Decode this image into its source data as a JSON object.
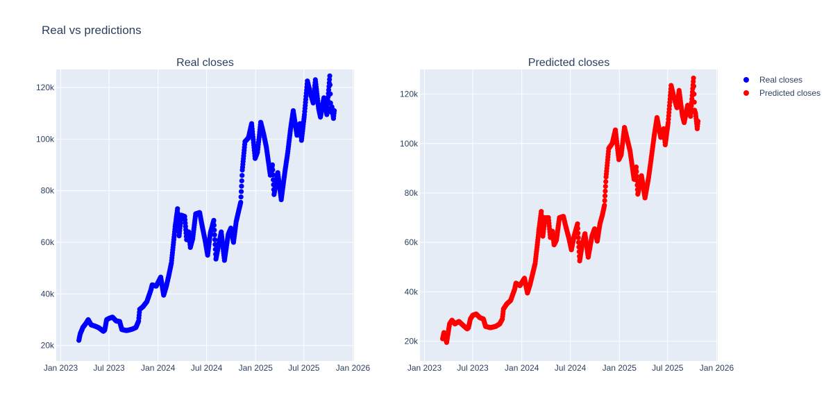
{
  "title": "Real vs predictions",
  "legend": [
    {
      "name": "Real closes",
      "color": "#0000ff"
    },
    {
      "name": "Predicted closes",
      "color": "#ff0000"
    }
  ],
  "colors": {
    "plot_bg": "#e5ecf6",
    "grid": "#ffffff",
    "text": "#2a3f5f"
  },
  "chart_data": [
    {
      "type": "scatter",
      "title": "Real closes",
      "xlabel": "",
      "ylabel": "",
      "x_ticks": [
        "Jan 2023",
        "Jul 2023",
        "Jan 2024",
        "Jul 2024",
        "Jan 2025",
        "Jul 2025",
        "Jan 2026"
      ],
      "y_ticks": [
        "20k",
        "40k",
        "60k",
        "80k",
        "100k",
        "120k"
      ],
      "xlim": [
        "2022-12-15",
        "2026-01-05"
      ],
      "ylim": [
        14000,
        127000
      ],
      "grid": true,
      "series": [
        {
          "name": "Real closes",
          "color": "#0000ff",
          "points": [
            [
              "2023-03-10",
              22000
            ],
            [
              "2023-03-15",
              24500
            ],
            [
              "2023-03-25",
              27000
            ],
            [
              "2023-04-05",
              28500
            ],
            [
              "2023-04-14",
              30000
            ],
            [
              "2023-04-25",
              28000
            ],
            [
              "2023-05-10",
              27500
            ],
            [
              "2023-05-25",
              26800
            ],
            [
              "2023-06-10",
              25500
            ],
            [
              "2023-06-15",
              26000
            ],
            [
              "2023-06-22",
              30000
            ],
            [
              "2023-07-01",
              30500
            ],
            [
              "2023-07-14",
              31000
            ],
            [
              "2023-07-28",
              29500
            ],
            [
              "2023-08-10",
              29300
            ],
            [
              "2023-08-18",
              26200
            ],
            [
              "2023-09-05",
              25800
            ],
            [
              "2023-09-25",
              26300
            ],
            [
              "2023-10-10",
              27000
            ],
            [
              "2023-10-20",
              29500
            ],
            [
              "2023-10-24",
              34000
            ],
            [
              "2023-11-05",
              35000
            ],
            [
              "2023-11-20",
              37000
            ],
            [
              "2023-12-05",
              41500
            ],
            [
              "2023-12-10",
              43500
            ],
            [
              "2023-12-25",
              43000
            ],
            [
              "2024-01-11",
              46500
            ],
            [
              "2024-01-22",
              39500
            ],
            [
              "2024-02-01",
              43000
            ],
            [
              "2024-02-10",
              47000
            ],
            [
              "2024-02-20",
              52000
            ],
            [
              "2024-02-28",
              60000
            ],
            [
              "2024-03-05",
              66000
            ],
            [
              "2024-03-14",
              73000
            ],
            [
              "2024-03-20",
              62500
            ],
            [
              "2024-03-28",
              70500
            ],
            [
              "2024-04-10",
              70000
            ],
            [
              "2024-04-17",
              61000
            ],
            [
              "2024-04-25",
              64000
            ],
            [
              "2024-05-01",
              58000
            ],
            [
              "2024-05-10",
              61500
            ],
            [
              "2024-05-21",
              71000
            ],
            [
              "2024-06-05",
              71500
            ],
            [
              "2024-06-15",
              66000
            ],
            [
              "2024-06-25",
              61000
            ],
            [
              "2024-07-05",
              55000
            ],
            [
              "2024-07-15",
              63500
            ],
            [
              "2024-07-28",
              68500
            ],
            [
              "2024-08-05",
              53500
            ],
            [
              "2024-08-15",
              59000
            ],
            [
              "2024-08-25",
              64000
            ],
            [
              "2024-09-06",
              53000
            ],
            [
              "2024-09-20",
              63000
            ],
            [
              "2024-09-30",
              65500
            ],
            [
              "2024-10-10",
              60000
            ],
            [
              "2024-10-20",
              68000
            ],
            [
              "2024-10-29",
              72000
            ],
            [
              "2024-11-06",
              75500
            ],
            [
              "2024-11-12",
              88000
            ],
            [
              "2024-11-22",
              99000
            ],
            [
              "2024-12-05",
              100500
            ],
            [
              "2024-12-17",
              106000
            ],
            [
              "2024-12-30",
              92500
            ],
            [
              "2025-01-08",
              95000
            ],
            [
              "2025-01-20",
              106500
            ],
            [
              "2025-01-31",
              102000
            ],
            [
              "2025-02-10",
              97000
            ],
            [
              "2025-02-25",
              86000
            ],
            [
              "2025-03-05",
              90000
            ],
            [
              "2025-03-11",
              78500
            ],
            [
              "2025-03-25",
              87000
            ],
            [
              "2025-04-07",
              76500
            ],
            [
              "2025-04-21",
              87500
            ],
            [
              "2025-05-01",
              94500
            ],
            [
              "2025-05-12",
              104000
            ],
            [
              "2025-05-22",
              111000
            ],
            [
              "2025-06-05",
              101500
            ],
            [
              "2025-06-16",
              106000
            ],
            [
              "2025-06-22",
              99500
            ],
            [
              "2025-07-03",
              109500
            ],
            [
              "2025-07-14",
              122500
            ],
            [
              "2025-07-25",
              118000
            ],
            [
              "2025-08-05",
              114000
            ],
            [
              "2025-08-13",
              123000
            ],
            [
              "2025-08-25",
              112000
            ],
            [
              "2025-09-01",
              108500
            ],
            [
              "2025-09-14",
              116000
            ],
            [
              "2025-09-25",
              109500
            ],
            [
              "2025-10-06",
              124500
            ],
            [
              "2025-10-10",
              110500
            ],
            [
              "2025-10-14",
              112500
            ],
            [
              "2025-10-20",
              108000
            ],
            [
              "2025-10-23",
              111000
            ]
          ]
        }
      ]
    },
    {
      "type": "scatter",
      "title": "Predicted closes",
      "xlabel": "",
      "ylabel": "",
      "x_ticks": [
        "Jan 2023",
        "Jul 2023",
        "Jan 2024",
        "Jul 2024",
        "Jan 2025",
        "Jul 2025",
        "Jan 2026"
      ],
      "y_ticks": [
        "20k",
        "40k",
        "60k",
        "80k",
        "100k",
        "120k"
      ],
      "xlim": [
        "2022-12-15",
        "2026-01-05"
      ],
      "ylim": [
        12000,
        130000
      ],
      "grid": true,
      "series": [
        {
          "name": "Predicted closes",
          "color": "#ff0000",
          "points": [
            [
              "2023-03-10",
              21000
            ],
            [
              "2023-03-15",
              23500
            ],
            [
              "2023-03-25",
              19500
            ],
            [
              "2023-04-05",
              27000
            ],
            [
              "2023-04-14",
              28500
            ],
            [
              "2023-04-25",
              27000
            ],
            [
              "2023-05-10",
              28000
            ],
            [
              "2023-05-25",
              26500
            ],
            [
              "2023-06-10",
              25000
            ],
            [
              "2023-06-15",
              25500
            ],
            [
              "2023-06-22",
              29000
            ],
            [
              "2023-07-01",
              30500
            ],
            [
              "2023-07-14",
              31000
            ],
            [
              "2023-07-28",
              29500
            ],
            [
              "2023-08-10",
              29000
            ],
            [
              "2023-08-18",
              26000
            ],
            [
              "2023-09-05",
              25500
            ],
            [
              "2023-09-25",
              26000
            ],
            [
              "2023-10-10",
              27000
            ],
            [
              "2023-10-20",
              29000
            ],
            [
              "2023-10-24",
              33000
            ],
            [
              "2023-11-05",
              35000
            ],
            [
              "2023-11-20",
              36500
            ],
            [
              "2023-12-05",
              41000
            ],
            [
              "2023-12-10",
              43500
            ],
            [
              "2023-12-25",
              42500
            ],
            [
              "2024-01-11",
              45500
            ],
            [
              "2024-01-22",
              39500
            ],
            [
              "2024-02-01",
              43000
            ],
            [
              "2024-02-10",
              47000
            ],
            [
              "2024-02-20",
              51500
            ],
            [
              "2024-02-28",
              59000
            ],
            [
              "2024-03-05",
              65000
            ],
            [
              "2024-03-14",
              72500
            ],
            [
              "2024-03-20",
              62500
            ],
            [
              "2024-03-28",
              70000
            ],
            [
              "2024-04-10",
              70000
            ],
            [
              "2024-04-17",
              62000
            ],
            [
              "2024-04-25",
              64500
            ],
            [
              "2024-05-01",
              59000
            ],
            [
              "2024-05-10",
              61000
            ],
            [
              "2024-05-21",
              70000
            ],
            [
              "2024-06-05",
              70500
            ],
            [
              "2024-06-15",
              66000
            ],
            [
              "2024-06-25",
              62000
            ],
            [
              "2024-07-05",
              57000
            ],
            [
              "2024-07-15",
              62500
            ],
            [
              "2024-07-28",
              67500
            ],
            [
              "2024-08-05",
              52500
            ],
            [
              "2024-08-15",
              59500
            ],
            [
              "2024-08-25",
              63500
            ],
            [
              "2024-09-06",
              54000
            ],
            [
              "2024-09-20",
              62500
            ],
            [
              "2024-09-30",
              65500
            ],
            [
              "2024-10-10",
              60500
            ],
            [
              "2024-10-20",
              67500
            ],
            [
              "2024-10-29",
              71000
            ],
            [
              "2024-11-06",
              75000
            ],
            [
              "2024-11-12",
              86500
            ],
            [
              "2024-11-22",
              98000
            ],
            [
              "2024-12-05",
              100000
            ],
            [
              "2024-12-17",
              105500
            ],
            [
              "2024-12-30",
              93500
            ],
            [
              "2025-01-08",
              95500
            ],
            [
              "2025-01-20",
              106500
            ],
            [
              "2025-01-31",
              101500
            ],
            [
              "2025-02-10",
              97000
            ],
            [
              "2025-02-25",
              85500
            ],
            [
              "2025-03-05",
              90500
            ],
            [
              "2025-03-11",
              79500
            ],
            [
              "2025-03-25",
              87000
            ],
            [
              "2025-04-07",
              78000
            ],
            [
              "2025-04-21",
              86500
            ],
            [
              "2025-05-01",
              94500
            ],
            [
              "2025-05-12",
              103500
            ],
            [
              "2025-05-22",
              110500
            ],
            [
              "2025-06-05",
              102500
            ],
            [
              "2025-06-16",
              106000
            ],
            [
              "2025-06-22",
              99500
            ],
            [
              "2025-07-03",
              108500
            ],
            [
              "2025-07-14",
              123500
            ],
            [
              "2025-07-25",
              118500
            ],
            [
              "2025-08-05",
              114500
            ],
            [
              "2025-08-13",
              121500
            ],
            [
              "2025-08-25",
              111500
            ],
            [
              "2025-09-01",
              108500
            ],
            [
              "2025-09-14",
              115500
            ],
            [
              "2025-09-25",
              111000
            ],
            [
              "2025-10-06",
              126500
            ],
            [
              "2025-10-10",
              113500
            ],
            [
              "2025-10-14",
              112000
            ],
            [
              "2025-10-20",
              106000
            ],
            [
              "2025-10-23",
              109000
            ]
          ]
        }
      ]
    }
  ]
}
